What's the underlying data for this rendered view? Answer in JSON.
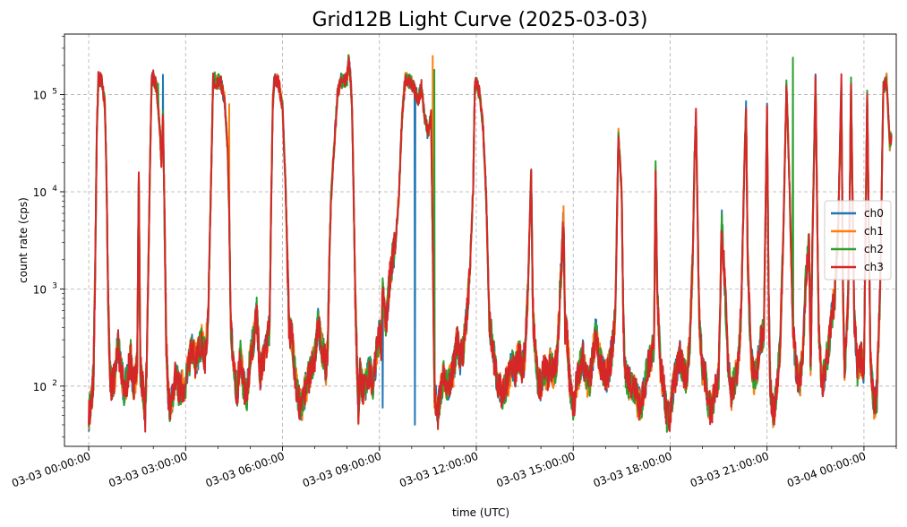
{
  "chart_data": {
    "type": "line",
    "title": "Grid12B Light Curve (2025-03-03)",
    "xlabel": "time (UTC)",
    "ylabel": "count rate (cps)",
    "yscale": "log",
    "ylim": [
      24,
      420000
    ],
    "xlim_hours": [
      -0.75,
      25.0
    ],
    "grid": true,
    "legend_position": "center-right",
    "x_ticks": [
      {
        "hours": 0,
        "label": "03-03 00:00:00"
      },
      {
        "hours": 3,
        "label": "03-03 03:00:00"
      },
      {
        "hours": 6,
        "label": "03-03 06:00:00"
      },
      {
        "hours": 9,
        "label": "03-03 09:00:00"
      },
      {
        "hours": 12,
        "label": "03-03 12:00:00"
      },
      {
        "hours": 15,
        "label": "03-03 15:00:00"
      },
      {
        "hours": 18,
        "label": "03-03 18:00:00"
      },
      {
        "hours": 21,
        "label": "03-03 21:00:00"
      },
      {
        "hours": 24,
        "label": "03-04 00:00:00"
      }
    ],
    "y_ticks": [
      {
        "value": 100,
        "base": "10",
        "exp": "2"
      },
      {
        "value": 1000,
        "base": "10",
        "exp": "3"
      },
      {
        "value": 10000,
        "base": "10",
        "exp": "4"
      },
      {
        "value": 100000,
        "base": "10",
        "exp": "5"
      }
    ],
    "baseline": [
      [
        0.0,
        50
      ],
      [
        0.1,
        80
      ],
      [
        0.15,
        130
      ],
      [
        0.2,
        1500
      ],
      [
        0.25,
        40000
      ],
      [
        0.3,
        145000
      ],
      [
        0.4,
        140000
      ],
      [
        0.5,
        80000
      ],
      [
        0.55,
        15000
      ],
      [
        0.6,
        900
      ],
      [
        0.65,
        150
      ],
      [
        0.7,
        100
      ],
      [
        0.8,
        120
      ],
      [
        0.9,
        280
      ],
      [
        1.0,
        150
      ],
      [
        1.1,
        90
      ],
      [
        1.2,
        120
      ],
      [
        1.3,
        200
      ],
      [
        1.35,
        120
      ],
      [
        1.4,
        100
      ],
      [
        1.5,
        160
      ],
      [
        1.55,
        16000
      ],
      [
        1.6,
        150
      ],
      [
        1.65,
        110
      ],
      [
        1.7,
        80
      ],
      [
        1.75,
        50
      ],
      [
        1.8,
        200
      ],
      [
        1.9,
        20000
      ],
      [
        1.95,
        140000
      ],
      [
        2.0,
        150000
      ],
      [
        2.1,
        120000
      ],
      [
        2.2,
        45000
      ],
      [
        2.25,
        20000
      ],
      [
        2.3,
        60000
      ],
      [
        2.35,
        5000
      ],
      [
        2.4,
        300
      ],
      [
        2.45,
        100
      ],
      [
        2.5,
        60
      ],
      [
        2.6,
        80
      ],
      [
        2.7,
        140
      ],
      [
        2.8,
        90
      ],
      [
        3.0,
        110
      ],
      [
        3.2,
        250
      ],
      [
        3.3,
        180
      ],
      [
        3.4,
        220
      ],
      [
        3.5,
        300
      ],
      [
        3.6,
        200
      ],
      [
        3.7,
        500
      ],
      [
        3.8,
        20000
      ],
      [
        3.85,
        140000
      ],
      [
        3.95,
        130000
      ],
      [
        4.0,
        140000
      ],
      [
        4.1,
        130000
      ],
      [
        4.2,
        90000
      ],
      [
        4.3,
        30000
      ],
      [
        4.35,
        6000
      ],
      [
        4.4,
        400
      ],
      [
        4.5,
        130
      ],
      [
        4.6,
        90
      ],
      [
        4.7,
        200
      ],
      [
        4.8,
        100
      ],
      [
        4.9,
        80
      ],
      [
        5.0,
        200
      ],
      [
        5.1,
        300
      ],
      [
        5.2,
        550
      ],
      [
        5.25,
        300
      ],
      [
        5.3,
        130
      ],
      [
        5.4,
        200
      ],
      [
        5.5,
        250
      ],
      [
        5.6,
        400
      ],
      [
        5.65,
        8000
      ],
      [
        5.7,
        80000
      ],
      [
        5.75,
        145000
      ],
      [
        5.85,
        140000
      ],
      [
        5.9,
        120000
      ],
      [
        6.0,
        75000
      ],
      [
        6.1,
        10000
      ],
      [
        6.15,
        2000
      ],
      [
        6.2,
        400
      ],
      [
        6.3,
        300
      ],
      [
        6.4,
        120
      ],
      [
        6.5,
        70
      ],
      [
        6.6,
        60
      ],
      [
        6.7,
        90
      ],
      [
        6.8,
        120
      ],
      [
        6.9,
        150
      ],
      [
        7.0,
        200
      ],
      [
        7.1,
        450
      ],
      [
        7.2,
        250
      ],
      [
        7.3,
        200
      ],
      [
        7.35,
        150
      ],
      [
        7.4,
        250
      ],
      [
        7.45,
        2000
      ],
      [
        7.5,
        8000
      ],
      [
        7.6,
        30000
      ],
      [
        7.7,
        100000
      ],
      [
        7.8,
        140000
      ],
      [
        7.9,
        135000
      ],
      [
        8.0,
        145000
      ],
      [
        8.05,
        230000
      ],
      [
        8.1,
        150000
      ],
      [
        8.15,
        80000
      ],
      [
        8.2,
        10000
      ],
      [
        8.25,
        1000
      ],
      [
        8.3,
        200
      ],
      [
        8.35,
        60
      ],
      [
        8.4,
        130
      ],
      [
        8.5,
        90
      ],
      [
        8.6,
        110
      ],
      [
        8.7,
        150
      ],
      [
        8.8,
        100
      ],
      [
        8.9,
        200
      ],
      [
        9.0,
        350
      ],
      [
        9.05,
        250
      ],
      [
        9.1,
        900
      ],
      [
        9.2,
        400
      ],
      [
        9.3,
        1100
      ],
      [
        9.4,
        2000
      ],
      [
        9.5,
        3000
      ],
      [
        9.6,
        9000
      ],
      [
        9.7,
        60000
      ],
      [
        9.8,
        145000
      ],
      [
        9.9,
        140000
      ],
      [
        10.0,
        130000
      ],
      [
        10.1,
        110000
      ],
      [
        10.2,
        90000
      ],
      [
        10.3,
        120000
      ],
      [
        10.4,
        60000
      ],
      [
        10.5,
        40000
      ],
      [
        10.6,
        60000
      ],
      [
        10.65,
        3000
      ],
      [
        10.7,
        100
      ],
      [
        10.8,
        50
      ],
      [
        10.9,
        90
      ],
      [
        11.0,
        130
      ],
      [
        11.1,
        100
      ],
      [
        11.2,
        120
      ],
      [
        11.3,
        150
      ],
      [
        11.35,
        200
      ],
      [
        11.4,
        300
      ],
      [
        11.5,
        180
      ],
      [
        11.6,
        250
      ],
      [
        11.7,
        500
      ],
      [
        11.8,
        1500
      ],
      [
        11.9,
        10000
      ],
      [
        11.95,
        110000
      ],
      [
        12.0,
        140000
      ],
      [
        12.1,
        100000
      ],
      [
        12.2,
        50000
      ],
      [
        12.3,
        10000
      ],
      [
        12.4,
        500
      ],
      [
        12.5,
        250
      ],
      [
        12.6,
        150
      ],
      [
        12.7,
        100
      ],
      [
        12.8,
        80
      ],
      [
        12.9,
        100
      ],
      [
        13.0,
        120
      ],
      [
        13.1,
        180
      ],
      [
        13.2,
        140
      ],
      [
        13.3,
        200
      ],
      [
        13.35,
        200
      ],
      [
        13.4,
        150
      ],
      [
        13.5,
        200
      ],
      [
        13.6,
        1000
      ],
      [
        13.7,
        18000
      ],
      [
        13.75,
        600
      ],
      [
        13.8,
        300
      ],
      [
        13.9,
        120
      ],
      [
        14.0,
        100
      ],
      [
        14.1,
        150
      ],
      [
        14.2,
        130
      ],
      [
        14.3,
        170
      ],
      [
        14.4,
        130
      ],
      [
        14.5,
        200
      ],
      [
        14.6,
        1000
      ],
      [
        14.7,
        5000
      ],
      [
        14.75,
        400
      ],
      [
        14.8,
        350
      ],
      [
        14.85,
        200
      ],
      [
        14.9,
        100
      ],
      [
        15.0,
        60
      ],
      [
        15.1,
        100
      ],
      [
        15.2,
        150
      ],
      [
        15.3,
        200
      ],
      [
        15.4,
        120
      ],
      [
        15.5,
        100
      ],
      [
        15.6,
        200
      ],
      [
        15.7,
        350
      ],
      [
        15.8,
        200
      ],
      [
        15.9,
        150
      ],
      [
        16.0,
        120
      ],
      [
        16.1,
        150
      ],
      [
        16.2,
        230
      ],
      [
        16.3,
        500
      ],
      [
        16.4,
        38000
      ],
      [
        16.5,
        10000
      ],
      [
        16.55,
        500
      ],
      [
        16.6,
        150
      ],
      [
        16.7,
        110
      ],
      [
        16.8,
        100
      ],
      [
        16.9,
        90
      ],
      [
        17.0,
        70
      ],
      [
        17.1,
        60
      ],
      [
        17.2,
        100
      ],
      [
        17.3,
        150
      ],
      [
        17.4,
        200
      ],
      [
        17.5,
        250
      ],
      [
        17.55,
        18000
      ],
      [
        17.6,
        1000
      ],
      [
        17.7,
        150
      ],
      [
        17.8,
        100
      ],
      [
        17.9,
        50
      ],
      [
        18.0,
        50
      ],
      [
        18.1,
        100
      ],
      [
        18.2,
        150
      ],
      [
        18.3,
        200
      ],
      [
        18.4,
        150
      ],
      [
        18.5,
        120
      ],
      [
        18.6,
        250
      ],
      [
        18.7,
        2000
      ],
      [
        18.75,
        19000
      ],
      [
        18.8,
        62000
      ],
      [
        18.9,
        500
      ],
      [
        19.0,
        150
      ],
      [
        19.1,
        120
      ],
      [
        19.2,
        60
      ],
      [
        19.3,
        60
      ],
      [
        19.4,
        100
      ],
      [
        19.5,
        120
      ],
      [
        19.6,
        5000
      ],
      [
        19.7,
        1000
      ],
      [
        19.8,
        150
      ],
      [
        19.9,
        80
      ],
      [
        20.0,
        120
      ],
      [
        20.1,
        150
      ],
      [
        20.2,
        600
      ],
      [
        20.3,
        20000
      ],
      [
        20.35,
        75000
      ],
      [
        20.4,
        2000
      ],
      [
        20.5,
        200
      ],
      [
        20.6,
        120
      ],
      [
        20.7,
        150
      ],
      [
        20.8,
        300
      ],
      [
        20.9,
        350
      ],
      [
        21.0,
        70000
      ],
      [
        21.05,
        800
      ],
      [
        21.1,
        100
      ],
      [
        21.2,
        50
      ],
      [
        21.3,
        100
      ],
      [
        21.4,
        250
      ],
      [
        21.5,
        3000
      ],
      [
        21.6,
        130000
      ],
      [
        21.7,
        10000
      ],
      [
        21.8,
        400
      ],
      [
        21.9,
        150
      ],
      [
        22.0,
        100
      ],
      [
        22.1,
        200
      ],
      [
        22.2,
        1200
      ],
      [
        22.3,
        3000
      ],
      [
        22.35,
        150
      ],
      [
        22.4,
        2500
      ],
      [
        22.5,
        150000
      ],
      [
        22.55,
        7000
      ],
      [
        22.6,
        400
      ],
      [
        22.7,
        100
      ],
      [
        22.8,
        150
      ],
      [
        22.9,
        250
      ],
      [
        23.0,
        500
      ],
      [
        23.1,
        900
      ],
      [
        23.2,
        4000
      ],
      [
        23.3,
        140000
      ],
      [
        23.35,
        1000
      ],
      [
        23.4,
        150
      ],
      [
        23.5,
        600
      ],
      [
        23.55,
        4000
      ],
      [
        23.6,
        130000
      ],
      [
        23.7,
        500
      ],
      [
        23.8,
        150
      ],
      [
        23.9,
        200
      ],
      [
        24.0,
        150
      ],
      [
        24.1,
        100000
      ],
      [
        24.2,
        200
      ],
      [
        24.3,
        60
      ],
      [
        24.4,
        80
      ],
      [
        24.5,
        1000
      ],
      [
        24.6,
        120000
      ],
      [
        24.7,
        140000
      ],
      [
        24.8,
        30000
      ],
      [
        24.85,
        38000
      ]
    ],
    "series": [
      {
        "name": "ch0",
        "color": "#1f77b4",
        "spikes": [
          [
            2.3,
            160000
          ],
          [
            9.1,
            60
          ],
          [
            10.1,
            40
          ]
        ]
      },
      {
        "name": "ch1",
        "color": "#ff7f0e",
        "spikes": [
          [
            4.35,
            80000
          ],
          [
            10.65,
            250000
          ],
          [
            10.7,
            60
          ]
        ]
      },
      {
        "name": "ch2",
        "color": "#2ca02c",
        "spikes": [
          [
            2.15,
            130000
          ],
          [
            3.9,
            170000
          ],
          [
            10.7,
            180000
          ],
          [
            21.8,
            240000
          ],
          [
            15.0,
            45
          ]
        ]
      },
      {
        "name": "ch3",
        "color": "#d62728",
        "spikes": []
      }
    ]
  }
}
